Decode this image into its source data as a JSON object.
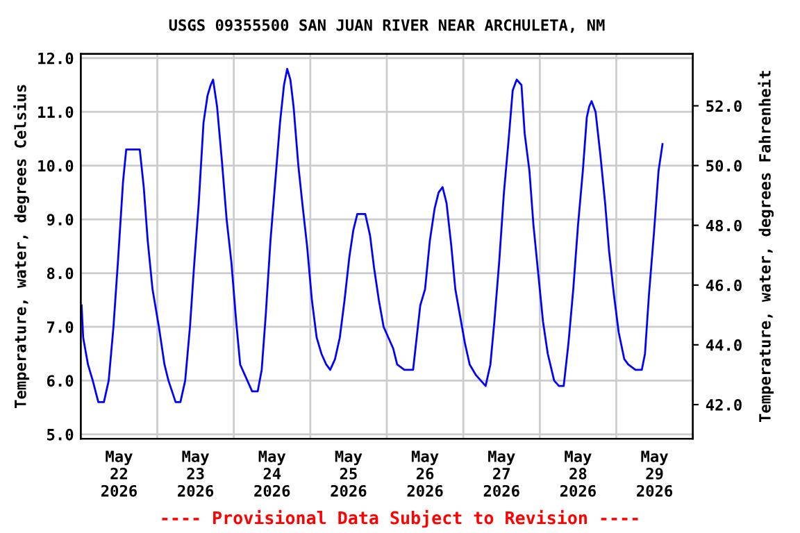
{
  "chart_data": {
    "type": "line",
    "title": "USGS 09355500 SAN JUAN RIVER NEAR ARCHULETA, NM",
    "ylabel": "Temperature, water, degrees Celsius",
    "y2label": "Temperature, water, degrees Fahrenheit",
    "annotations": [
      "---- Provisional Data Subject to Revision ----"
    ],
    "xlim": [
      "2026-05-22T00:00",
      "2026-05-30T00:00"
    ],
    "xticks": [
      {
        "value": "2026-05-22T12:00",
        "label": "May\n22\n2026"
      },
      {
        "value": "2026-05-23T00:00",
        "label": null
      },
      {
        "value": "2026-05-23T12:00",
        "label": "May\n23\n2026"
      },
      {
        "value": "2026-05-24T00:00",
        "label": null
      },
      {
        "value": "2026-05-24T12:00",
        "label": "May\n24\n2026"
      },
      {
        "value": "2026-05-25T00:00",
        "label": null
      },
      {
        "value": "2026-05-25T12:00",
        "label": "May\n25\n2026"
      },
      {
        "value": "2026-05-26T00:00",
        "label": null
      },
      {
        "value": "2026-05-26T12:00",
        "label": "May\n26\n2026"
      },
      {
        "value": "2026-05-27T00:00",
        "label": null
      },
      {
        "value": "2026-05-27T12:00",
        "label": "May\n27\n2026"
      },
      {
        "value": "2026-05-28T00:00",
        "label": null
      },
      {
        "value": "2026-05-28T12:00",
        "label": "May\n28\n2026"
      },
      {
        "value": "2026-05-29T00:00",
        "label": null
      },
      {
        "value": "2026-05-29T12:00",
        "label": "May\n29\n2026"
      }
    ],
    "ylim": [
      4.92,
      12.08
    ],
    "yticks": [
      {
        "value": 5,
        "label": "5.0"
      },
      {
        "value": 6,
        "label": "6.0"
      },
      {
        "value": 7,
        "label": "7.0"
      },
      {
        "value": 8,
        "label": "8.0"
      },
      {
        "value": 9,
        "label": "9.0"
      },
      {
        "value": 10,
        "label": "10.0"
      },
      {
        "value": 11,
        "label": "11.0"
      },
      {
        "value": 12,
        "label": "12.0"
      }
    ],
    "y2lim": [
      40.86,
      53.74
    ],
    "y2ticks": [
      {
        "value": 42,
        "label": "42.0"
      },
      {
        "value": 44,
        "label": "44.0"
      },
      {
        "value": 46,
        "label": "46.0"
      },
      {
        "value": 48,
        "label": "48.0"
      },
      {
        "value": 50,
        "label": "50.0"
      },
      {
        "value": 52,
        "label": "52.0"
      }
    ],
    "grid": true,
    "legend": false,
    "series": [
      {
        "color": "#0000ff",
        "x": [
          "2026-05-22T00:15",
          "2026-05-22T00:45",
          "2026-05-22T02:15",
          "2026-05-22T03:45",
          "2026-05-22T05:30",
          "2026-05-22T07:15",
          "2026-05-22T08:45",
          "2026-05-22T10:15",
          "2026-05-22T11:45",
          "2026-05-22T13:15",
          "2026-05-22T14:15",
          "2026-05-22T16:45",
          "2026-05-22T18:30",
          "2026-05-22T19:45",
          "2026-05-22T21:00",
          "2026-05-22T22:30",
          "2026-05-23T00:30",
          "2026-05-23T02:15",
          "2026-05-23T03:30",
          "2026-05-23T05:45",
          "2026-05-23T07:15",
          "2026-05-23T08:45",
          "2026-05-23T10:15",
          "2026-05-23T11:30",
          "2026-05-23T13:00",
          "2026-05-23T14:30",
          "2026-05-23T15:45",
          "2026-05-23T16:45",
          "2026-05-23T17:30",
          "2026-05-23T18:45",
          "2026-05-23T20:15",
          "2026-05-23T21:45",
          "2026-05-23T23:15",
          "2026-05-24T00:45",
          "2026-05-24T02:00",
          "2026-05-24T04:15",
          "2026-05-24T05:45",
          "2026-05-24T07:30",
          "2026-05-24T08:45",
          "2026-05-24T10:00",
          "2026-05-24T11:30",
          "2026-05-24T13:00",
          "2026-05-24T14:30",
          "2026-05-24T15:45",
          "2026-05-24T16:45",
          "2026-05-24T17:45",
          "2026-05-24T18:45",
          "2026-05-24T20:15",
          "2026-05-24T21:30",
          "2026-05-24T23:00",
          "2026-05-25T00:30",
          "2026-05-25T02:00",
          "2026-05-25T03:30",
          "2026-05-25T05:00",
          "2026-05-25T06:15",
          "2026-05-25T07:45",
          "2026-05-25T09:15",
          "2026-05-25T10:45",
          "2026-05-25T12:15",
          "2026-05-25T13:30",
          "2026-05-25T14:45",
          "2026-05-25T17:15",
          "2026-05-25T18:45",
          "2026-05-25T20:00",
          "2026-05-25T21:30",
          "2026-05-25T23:00",
          "2026-05-26T00:30",
          "2026-05-26T02:00",
          "2026-05-26T03:15",
          "2026-05-26T05:30",
          "2026-05-26T08:15",
          "2026-05-26T09:00",
          "2026-05-26T10:30",
          "2026-05-26T12:00",
          "2026-05-26T13:30",
          "2026-05-26T15:00",
          "2026-05-26T16:15",
          "2026-05-26T17:30",
          "2026-05-26T18:45",
          "2026-05-26T20:15",
          "2026-05-26T21:30",
          "2026-05-26T23:00",
          "2026-05-27T00:30",
          "2026-05-27T02:00",
          "2026-05-27T04:00",
          "2026-05-27T07:00",
          "2026-05-27T08:30",
          "2026-05-27T09:45",
          "2026-05-27T11:15",
          "2026-05-27T12:45",
          "2026-05-27T14:15",
          "2026-05-27T15:30",
          "2026-05-27T16:45",
          "2026-05-27T18:15",
          "2026-05-27T19:15",
          "2026-05-27T20:45",
          "2026-05-27T22:00",
          "2026-05-27T23:30",
          "2026-05-28T01:00",
          "2026-05-28T02:30",
          "2026-05-28T04:30",
          "2026-05-28T06:00",
          "2026-05-28T07:30",
          "2026-05-28T09:00",
          "2026-05-28T10:30",
          "2026-05-28T12:00",
          "2026-05-28T13:30",
          "2026-05-28T14:45",
          "2026-05-28T15:30",
          "2026-05-28T16:15",
          "2026-05-28T17:30",
          "2026-05-28T19:00",
          "2026-05-28T20:30",
          "2026-05-28T21:45",
          "2026-05-28T23:15",
          "2026-05-29T00:45",
          "2026-05-29T02:30",
          "2026-05-29T03:45",
          "2026-05-29T06:00",
          "2026-05-29T08:00",
          "2026-05-29T09:00",
          "2026-05-29T10:15",
          "2026-05-29T11:45",
          "2026-05-29T13:15",
          "2026-05-29T14:30"
        ],
        "values": [
          7.4,
          6.8,
          6.3,
          6.0,
          5.6,
          5.6,
          6.0,
          7.0,
          8.3,
          9.7,
          10.3,
          10.3,
          10.3,
          9.6,
          8.6,
          7.7,
          7.0,
          6.3,
          6.0,
          5.6,
          5.6,
          6.0,
          7.0,
          8.1,
          9.3,
          10.8,
          11.3,
          11.5,
          11.6,
          11.1,
          10.1,
          9.0,
          8.2,
          7.1,
          6.3,
          6.0,
          5.8,
          5.8,
          6.2,
          7.2,
          8.6,
          9.7,
          10.8,
          11.5,
          11.8,
          11.6,
          11.1,
          10.0,
          9.3,
          8.5,
          7.5,
          6.8,
          6.5,
          6.3,
          6.2,
          6.4,
          6.8,
          7.5,
          8.3,
          8.8,
          9.1,
          9.1,
          8.7,
          8.1,
          7.5,
          7.0,
          6.8,
          6.6,
          6.3,
          6.2,
          6.2,
          6.6,
          7.4,
          7.7,
          8.6,
          9.2,
          9.5,
          9.6,
          9.3,
          8.5,
          7.7,
          7.2,
          6.7,
          6.3,
          6.1,
          5.9,
          6.3,
          7.1,
          8.2,
          9.5,
          10.5,
          11.4,
          11.6,
          11.5,
          10.6,
          9.9,
          8.9,
          8.0,
          7.1,
          6.5,
          6.0,
          5.9,
          5.9,
          6.7,
          7.7,
          8.9,
          9.9,
          10.9,
          11.1,
          11.2,
          11.0,
          10.2,
          9.3,
          8.4,
          7.6,
          6.9,
          6.4,
          6.3,
          6.2,
          6.2,
          6.5,
          7.6,
          8.7,
          9.9,
          10.4
        ]
      }
    ]
  }
}
